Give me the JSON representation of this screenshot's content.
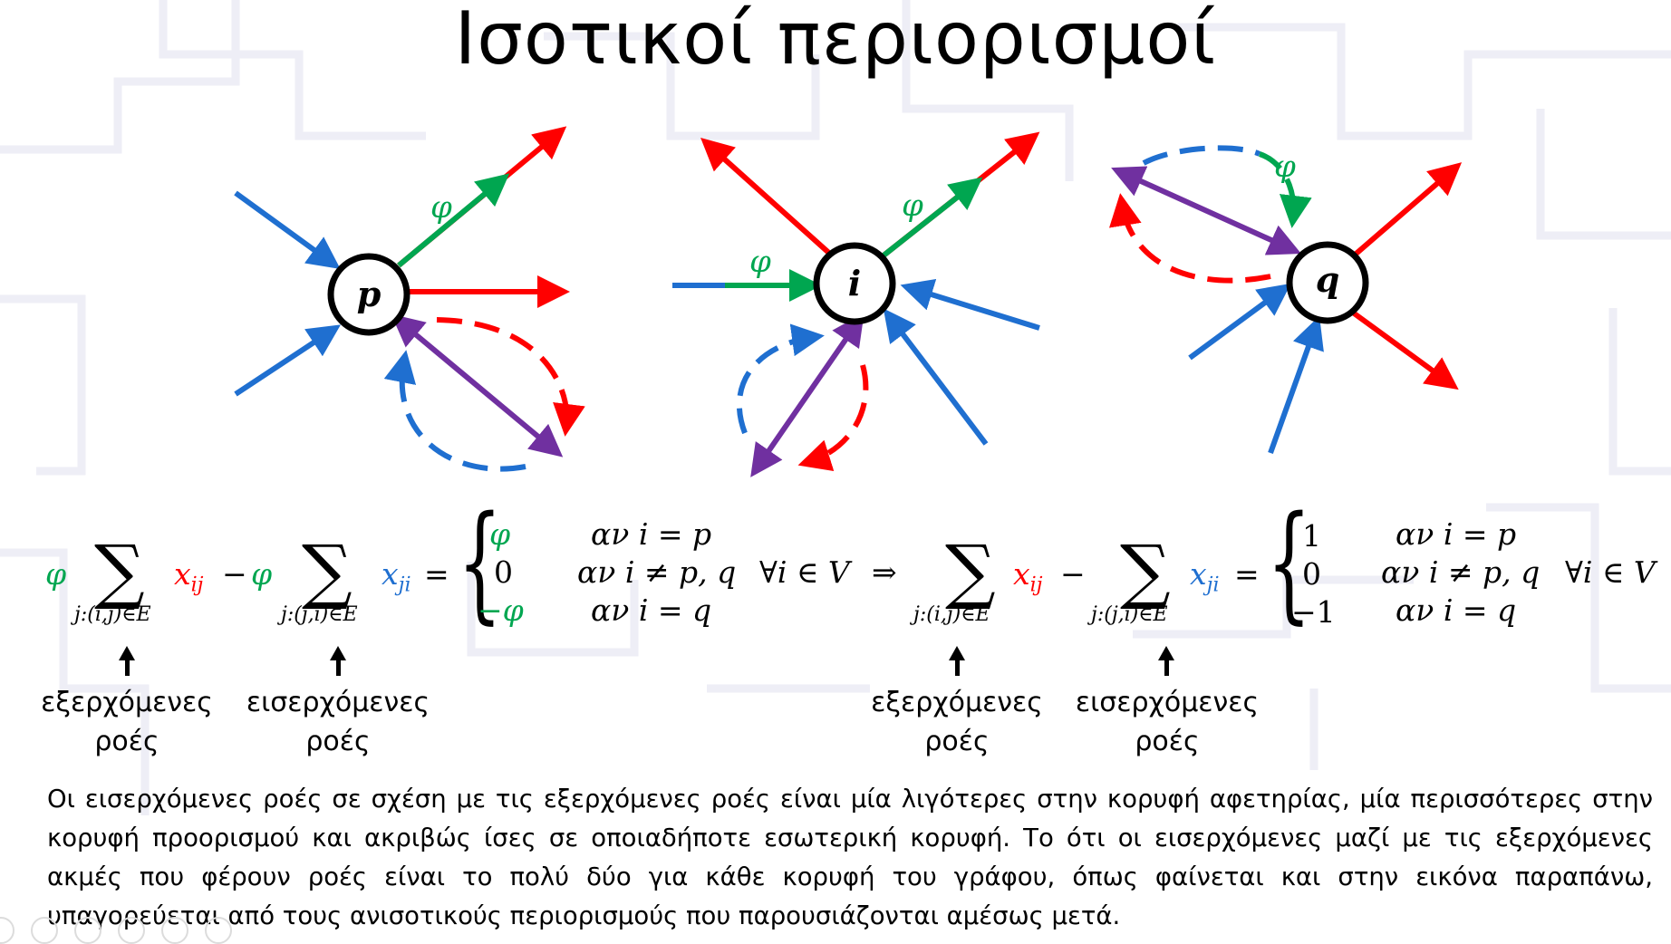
{
  "title": "Ισοτικοί περιορισμοί",
  "diagrams": [
    {
      "node": "p",
      "flow": "φ"
    },
    {
      "node": "i",
      "flow": "φ"
    },
    {
      "node": "q",
      "flow": "φ"
    }
  ],
  "equation_left": {
    "phi": "φ",
    "sum_sub_out": "j:(i,j)∈E",
    "x_out": "x",
    "x_out_sub": "ij",
    "minus": "−",
    "sum_sub_in": "j:(j,i)∈E",
    "x_in": "x",
    "x_in_sub": "ji",
    "eq": "=",
    "cases": [
      {
        "value": "φ",
        "cond": "αν i = p"
      },
      {
        "value": "0",
        "cond": "αν i ≠ p, q"
      },
      {
        "value": "−φ",
        "cond": "αν i = q"
      }
    ],
    "forall": "∀i ∈ V",
    "implies": "⇒"
  },
  "equation_right": {
    "sum_sub_out": "j:(i,j)∈E",
    "x_out": "x",
    "x_out_sub": "ij",
    "minus": "−",
    "sum_sub_in": "j:(j,i)∈E",
    "x_in": "x",
    "x_in_sub": "ji",
    "eq": "=",
    "cases": [
      {
        "value": "1",
        "cond": "αν i = p"
      },
      {
        "value": "0",
        "cond": "αν i ≠ p, q"
      },
      {
        "value": "−1",
        "cond": "αν i = q"
      }
    ],
    "forall": "∀i ∈ V"
  },
  "labels": {
    "outgoing_l1": "εξερχόμενες",
    "outgoing_l2": "ροές",
    "incoming_l1": "εισερχόμενες",
    "incoming_l2": "ροές"
  },
  "paragraph": "Οι εισερχόμενες ροές σε σχέση με τις εξερχόμενες ροές είναι μία λιγότερες στην κορυφή αφετηρίας, μία περισσότερες στην κορυφή προορισμού και ακριβώς ίσες σε οποιαδήποτε εσωτερική κορυφή. Το ότι οι εισερχόμενες μαζί με τις εξερχόμενες ακμές που φέρουν ροές είναι το πολύ δύο για κάθε κορυφή του γράφου, όπως φαίνεται και στην εικόνα παραπάνω, υπαγορεύεται από τους ανισοτικούς περιορισμούς που παρουσιάζονται αμέσως μετά.",
  "colors": {
    "outgoing": "#ff0000",
    "incoming": "#1f6fd0",
    "flow": "#00a650",
    "both": "#7030a0"
  }
}
